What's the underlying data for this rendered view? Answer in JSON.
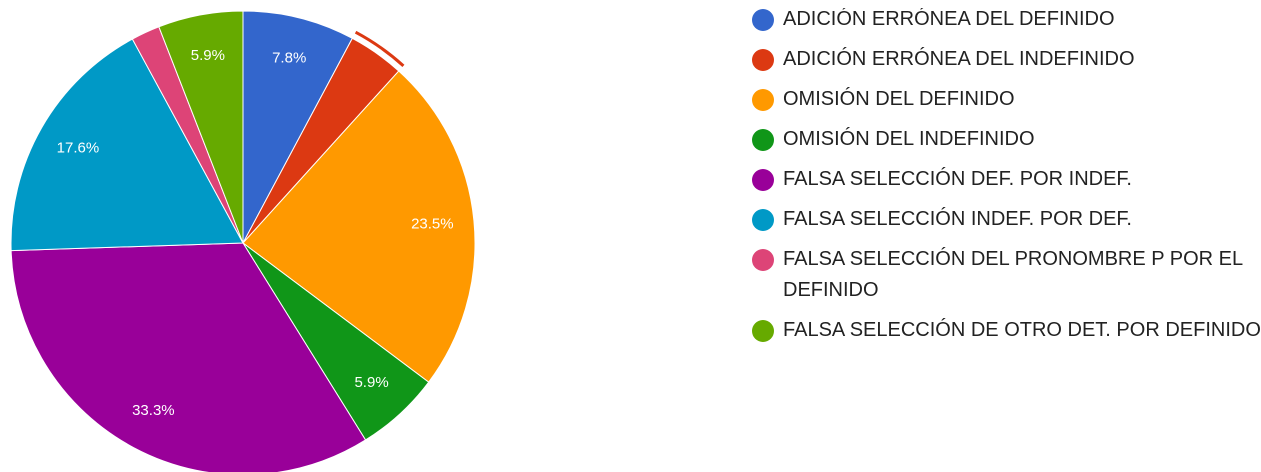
{
  "chart_data": {
    "type": "pie",
    "categories": [
      "ADICIÓN ERRÓNEA DEL DEFINIDO",
      "ADICIÓN ERRÓNEA DEL INDEFINIDO",
      "OMISIÓN DEL DEFINIDO",
      "OMISIÓN DEL INDEFINIDO",
      "FALSA SELECCIÓN DEF. POR INDEF.",
      "FALSA SELECCIÓN INDEF. POR DEF.",
      "FALSA SELECCIÓN DEL PRONOMBRE P POR EL DEFINIDO",
      "FALSA SELECCIÓN DE OTRO DET. POR DEFINIDO"
    ],
    "values": [
      7.8,
      3.9,
      23.5,
      5.9,
      33.3,
      17.6,
      2.0,
      5.9
    ],
    "value_labels": [
      "7.8%",
      null,
      "23.5%",
      "5.9%",
      "33.3%",
      "17.6%",
      null,
      "5.9%"
    ],
    "colors": [
      "#3366cc",
      "#dc3912",
      "#ff9900",
      "#109618",
      "#990099",
      "#0099c6",
      "#dd4477",
      "#66aa00"
    ],
    "legend": "right"
  }
}
